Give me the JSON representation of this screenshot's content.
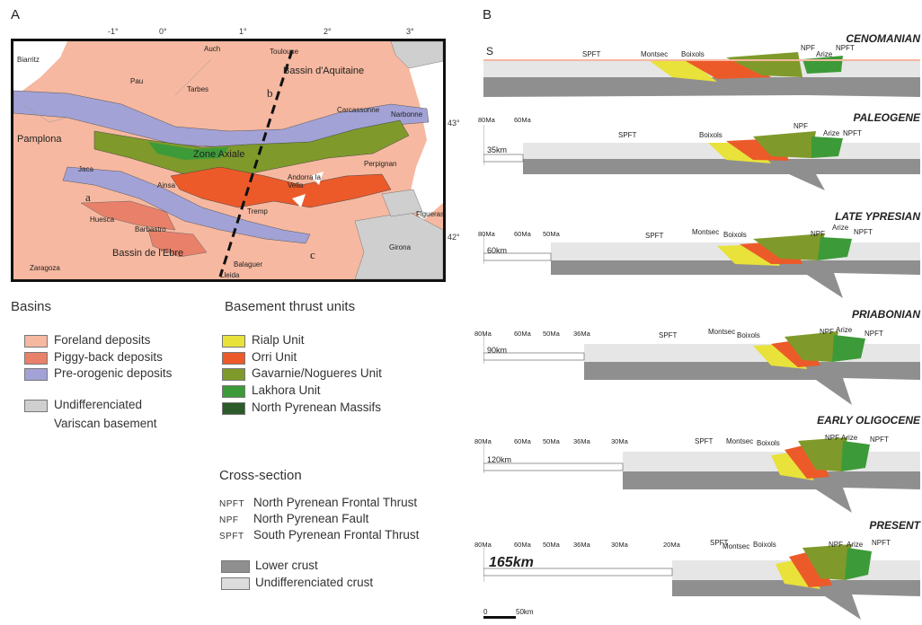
{
  "panel_a_label": "A",
  "panel_b_label": "B",
  "map": {
    "lon_ticks": [
      "-1°",
      "0°",
      "1°",
      "2°",
      "3°"
    ],
    "lat_ticks": [
      "43°",
      "42°"
    ],
    "places": {
      "biarritz": "Biarritz",
      "auch": "Auch",
      "toulouse": "Toulouse",
      "bassin_aquitaine": "Bassin d'Aquitaine",
      "pau": "Pau",
      "tarbes": "Tarbes",
      "carcassonne": "Carcassonne",
      "narbonne": "Narbonne",
      "pamplona": "Pamplona",
      "zone_axiale": "Zone Axiale",
      "perpignan": "Perpignan",
      "jaca": "Jaca",
      "ainsa": "Ainsa",
      "andorra": "Andorra la Vella",
      "huesca": "Huesca",
      "barbastro": "Barbastro",
      "tremp": "Tremp",
      "figueras": "Figueras",
      "girona": "Girona",
      "bassin_ebre": "Bassin de l'Ebre",
      "zaragoza": "Zaragoza",
      "balaguer": "Balaguer",
      "lleida": "Lleida",
      "a": "a",
      "b": "b",
      "c": "c"
    }
  },
  "legend": {
    "basins_title": "Basins",
    "basins": [
      {
        "label": "Foreland deposits",
        "color": "#f6b8a0"
      },
      {
        "label": "Piggy-back deposits",
        "color": "#e9806a"
      },
      {
        "label": "Pre-orogenic deposits",
        "color": "#a3a2d6"
      }
    ],
    "variscan": {
      "label": "Undifferenciated",
      "label2": "Variscan basement",
      "color": "#cfcfcf"
    },
    "thrust_title": "Basement thrust units",
    "thrust_units": [
      {
        "label": "Rialp Unit",
        "color": "#e8e23a"
      },
      {
        "label": "Orri Unit",
        "color": "#ec5a2a"
      },
      {
        "label": "Gavarnie/Nogueres Unit",
        "color": "#7f9a2a"
      },
      {
        "label": "Lakhora Unit",
        "color": "#3d9a38"
      },
      {
        "label": "North Pyrenean Massifs",
        "color": "#2c5a2a"
      }
    ],
    "cross_title": "Cross-section",
    "abbreviations": [
      {
        "abbr": "NPFT",
        "text": "North Pyrenean Frontal Thrust"
      },
      {
        "abbr": "NPF",
        "text": "North Pyrenean Fault"
      },
      {
        "abbr": "SPFT",
        "text": "South Pyrenean Frontal Thrust"
      }
    ],
    "crust": [
      {
        "label": "Lower crust",
        "color": "#8f8f8f"
      },
      {
        "label": "Undifferenciated crust",
        "color": "#dcdcdc"
      }
    ]
  },
  "sections": {
    "s_label": "S",
    "scale_bar": {
      "zero": "0",
      "end": "50km"
    },
    "items": [
      {
        "title": "CENOMANIAN",
        "labels": [
          "SPFT",
          "Montsec",
          "Boixols",
          "NPF",
          "Arize",
          "NPFT"
        ],
        "times": [],
        "km": ""
      },
      {
        "title": "PALEOGENE",
        "labels": [
          "SPFT",
          "Boixols",
          "NPF",
          "Arize",
          "NPFT"
        ],
        "times": [
          "80Ma",
          "60Ma"
        ],
        "km": "35km"
      },
      {
        "title": "LATE YPRESIAN",
        "labels": [
          "SPFT",
          "Montsec",
          "Boixols",
          "NPF",
          "Arize",
          "NPFT"
        ],
        "times": [
          "80Ma",
          "60Ma",
          "50Ma"
        ],
        "km": "60km"
      },
      {
        "title": "PRIABONIAN",
        "labels": [
          "SPFT",
          "Montsec",
          "Boixols",
          "NPF",
          "Arize",
          "NPFT"
        ],
        "times": [
          "80Ma",
          "60Ma",
          "50Ma",
          "36Ma"
        ],
        "km": "90km"
      },
      {
        "title": "EARLY OLIGOCENE",
        "labels": [
          "SPFT",
          "Montsec",
          "Boixols",
          "NPF",
          "Arize",
          "NPFT"
        ],
        "times": [
          "80Ma",
          "60Ma",
          "50Ma",
          "36Ma",
          "30Ma"
        ],
        "km": "120km"
      },
      {
        "title": "PRESENT",
        "labels": [
          "SPFT",
          "Montsec",
          "Boixols",
          "NPF",
          "Arize",
          "NPFT"
        ],
        "times": [
          "80Ma",
          "60Ma",
          "50Ma",
          "36Ma",
          "30Ma",
          "20Ma"
        ],
        "km": "165km"
      }
    ]
  }
}
